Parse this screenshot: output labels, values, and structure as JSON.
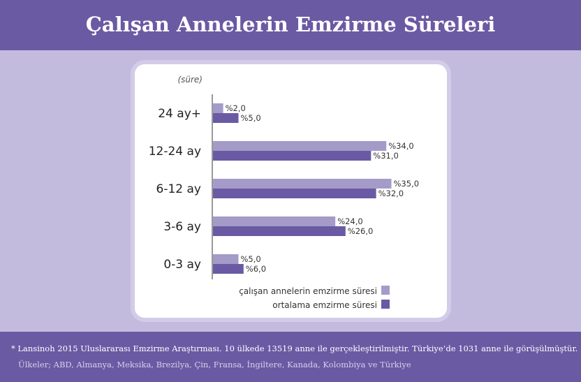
{
  "header": {
    "title": "Çalışan Annelerin Emzirme Süreleri"
  },
  "footer": {
    "line1": "* Lansinoh 2015 Uluslararası Emzirme Araştırması. 10 ülkede 13519 anne ile gerçekleştirilmiştir. Türkiye’de 1031 anne ile görüşülmüştür.",
    "line2": "Ülkeler; ABD, Almanya, Meksika, Brezilya, Çin, Fransa, İngiltere, Kanada, Kolombiya ve Türkiye"
  },
  "chart_data": {
    "type": "bar",
    "orientation": "horizontal",
    "ylabel": "(süre)",
    "categories": [
      "24 ay+",
      "12-24 ay",
      "6-12 ay",
      "3-6 ay",
      "0-3 ay"
    ],
    "series": [
      {
        "name": "çalışan annelerin emzirme süresi",
        "color": "#a59bc9",
        "values": [
          2,
          34,
          35,
          24,
          5
        ],
        "labels": [
          "%2,0",
          "%34,0",
          "%35,0",
          "%24,0",
          "%5,0"
        ]
      },
      {
        "name": "ortalama emzirme süresi",
        "color": "#6a5aa3",
        "values": [
          5,
          31,
          32,
          26,
          6
        ],
        "labels": [
          "%5,0",
          "%31,0",
          "%32,0",
          "%26,0",
          "%6,0"
        ]
      }
    ],
    "legend": "bottom-right"
  }
}
